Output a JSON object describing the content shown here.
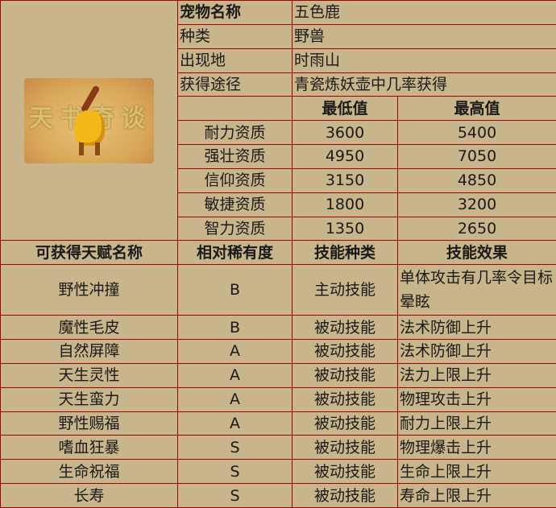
{
  "pet": {
    "name_label": "宠物名称",
    "name": "五色鹿",
    "type_label": "种类",
    "type": "野兽",
    "location_label": "出现地",
    "location": "时雨山",
    "obtain_label": "获得途径",
    "obtain": "青瓷炼妖壶中几率获得",
    "image_logo_text": "天书奇谈"
  },
  "stats": {
    "min_header": "最低值",
    "max_header": "最高值",
    "rows": [
      {
        "name": "耐力资质",
        "min": "3600",
        "max": "5400"
      },
      {
        "name": "强壮资质",
        "min": "4950",
        "max": "7050"
      },
      {
        "name": "信仰资质",
        "min": "3150",
        "max": "4850"
      },
      {
        "name": "敏捷资质",
        "min": "1800",
        "max": "3200"
      },
      {
        "name": "智力资质",
        "min": "1350",
        "max": "2650"
      }
    ]
  },
  "talents": {
    "headers": [
      "可获得天赋名称",
      "相对稀有度",
      "技能种类",
      "技能效果"
    ],
    "rows": [
      {
        "name": "野性冲撞",
        "rarity": "B",
        "kind": "主动技能",
        "effect": "单体攻击有几率令目标晕眩"
      },
      {
        "name": "魔性毛皮",
        "rarity": "B",
        "kind": "被动技能",
        "effect": "法术防御上升"
      },
      {
        "name": "自然屏障",
        "rarity": "A",
        "kind": "被动技能",
        "effect": "法术防御上升"
      },
      {
        "name": "天生灵性",
        "rarity": "A",
        "kind": "被动技能",
        "effect": "法力上限上升"
      },
      {
        "name": "天生蛮力",
        "rarity": "A",
        "kind": "被动技能",
        "effect": "物理攻击上升"
      },
      {
        "name": "野性赐福",
        "rarity": "A",
        "kind": "被动技能",
        "effect": "耐力上限上升"
      },
      {
        "name": "嗜血狂暴",
        "rarity": "S",
        "kind": "被动技能",
        "effect": "物理爆击上升"
      },
      {
        "name": "生命祝福",
        "rarity": "S",
        "kind": "被动技能",
        "effect": "生命上限上升"
      },
      {
        "name": "长寿",
        "rarity": "S",
        "kind": "被动技能",
        "effect": "寿命上限上升"
      }
    ]
  }
}
